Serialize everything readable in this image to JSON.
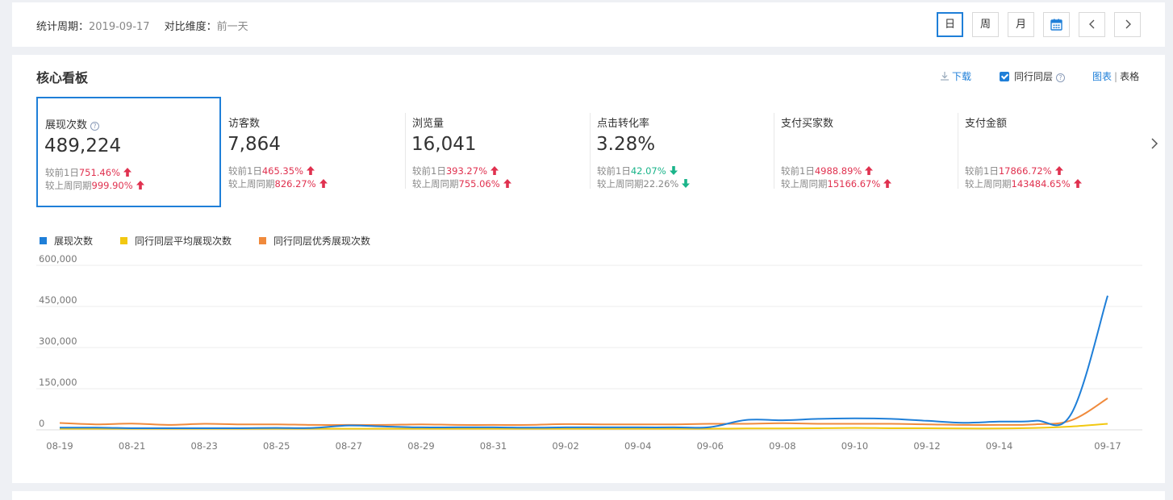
{
  "period": {
    "label": "统计周期：",
    "value": "2019-09-17",
    "compare_label": "对比维度：",
    "compare_value": "前一天"
  },
  "range_buttons": [
    {
      "label": "日",
      "active": true
    },
    {
      "label": "周",
      "active": false
    },
    {
      "label": "月",
      "active": false
    }
  ],
  "panel": {
    "title": "核心看板",
    "download": "下载",
    "same_level": "同行同层",
    "view_chart": "图表",
    "view_table": "表格"
  },
  "metrics": [
    {
      "name": "展现次数",
      "value": "489,224",
      "has_help": true,
      "day_label": "较前1日",
      "day_change": "751.46%",
      "day_dir": "up",
      "week_label": "较上周同期",
      "week_change": "999.90%",
      "week_dir": "up"
    },
    {
      "name": "访客数",
      "value": "7,864",
      "day_label": "较前1日",
      "day_change": "465.35%",
      "day_dir": "up",
      "week_label": "较上周同期",
      "week_change": "826.27%",
      "week_dir": "up"
    },
    {
      "name": "浏览量",
      "value": "16,041",
      "day_label": "较前1日",
      "day_change": "393.27%",
      "day_dir": "up",
      "week_label": "较上周同期",
      "week_change": "755.06%",
      "week_dir": "up"
    },
    {
      "name": "点击转化率",
      "value": "3.28%",
      "day_label": "较前1日",
      "day_change": "42.07%",
      "day_dir": "down",
      "week_label": "较上周同期",
      "week_change": "22.26%",
      "week_dir": "down"
    },
    {
      "name": "支付买家数",
      "value": "",
      "day_label": "较前1日",
      "day_change": "4988.89%",
      "day_dir": "up",
      "week_label": "较上周同期",
      "week_change": "15166.67%",
      "week_dir": "up"
    },
    {
      "name": "支付金额",
      "value": "",
      "day_label": "较前1日",
      "day_change": "17866.72%",
      "day_dir": "up",
      "week_label": "较上周同期",
      "week_change": "143484.65%",
      "week_dir": "up"
    }
  ],
  "colors": {
    "accent": "#1f7fd8",
    "up": "#e0314f",
    "down": "#1bb48a",
    "series_blue": "#1f7fd8",
    "series_yellow": "#f2c811",
    "series_orange": "#f08a3c"
  },
  "chart_data": {
    "type": "line",
    "x": [
      "08-19",
      "08-20",
      "08-21",
      "08-22",
      "08-23",
      "08-24",
      "08-25",
      "08-26",
      "08-27",
      "08-28",
      "08-29",
      "08-30",
      "08-31",
      "09-01",
      "09-02",
      "09-03",
      "09-04",
      "09-05",
      "09-06",
      "09-07",
      "09-08",
      "09-09",
      "09-10",
      "09-11",
      "09-12",
      "09-13",
      "09-14",
      "09-15",
      "09-16",
      "09-17"
    ],
    "x_ticks": [
      "08-19",
      "08-21",
      "08-23",
      "08-25",
      "08-27",
      "08-29",
      "08-31",
      "09-02",
      "09-04",
      "09-06",
      "09-08",
      "09-10",
      "09-12",
      "09-14",
      "09-17"
    ],
    "y_ticks": [
      "600,000",
      "450,000",
      "300,000",
      "150,000",
      "0"
    ],
    "ylim": [
      0,
      600000
    ],
    "grid": true,
    "legend": "top-left",
    "series": [
      {
        "name": "展现次数",
        "color": "#1f7fd8",
        "values": [
          8000,
          8000,
          6000,
          6000,
          6000,
          6000,
          7000,
          7000,
          16000,
          12000,
          9000,
          9000,
          9000,
          8000,
          9000,
          9000,
          9000,
          9000,
          10000,
          36000,
          35000,
          40000,
          42000,
          40000,
          33000,
          26000,
          30000,
          33000,
          60000,
          489224
        ]
      },
      {
        "name": "同行同层平均展现次数",
        "color": "#f2c811",
        "values": [
          4000,
          4000,
          4000,
          4000,
          4000,
          4000,
          4000,
          4000,
          4000,
          4000,
          4000,
          4000,
          4000,
          4000,
          4000,
          4000,
          4000,
          4000,
          4000,
          5000,
          5000,
          6000,
          7000,
          6000,
          6000,
          5000,
          5000,
          7000,
          12000,
          22000
        ]
      },
      {
        "name": "同行同层优秀展现次数",
        "color": "#f08a3c",
        "values": [
          25000,
          20000,
          23000,
          18000,
          22000,
          20000,
          20000,
          18000,
          18000,
          18000,
          20000,
          18000,
          18000,
          18000,
          21000,
          20000,
          20000,
          20000,
          22000,
          22000,
          24000,
          22000,
          22000,
          22000,
          20000,
          18000,
          18000,
          20000,
          35000,
          115000
        ]
      }
    ]
  }
}
